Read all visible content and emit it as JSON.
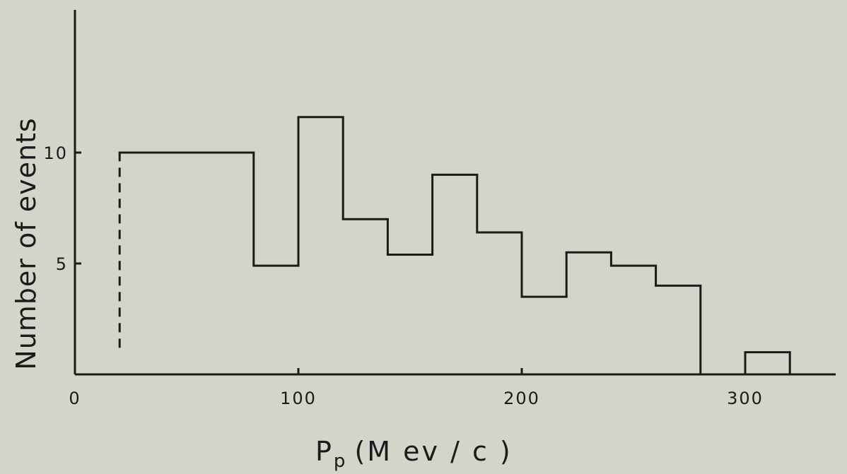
{
  "chart_data": {
    "type": "bar",
    "title": "",
    "xlabel": {
      "symbol": "P",
      "subscript": "p",
      "rest": "(M ev / c )"
    },
    "ylabel": "Number of events",
    "xlim": [
      0,
      340
    ],
    "ylim": [
      0,
      16
    ],
    "x_ticks": [
      0,
      100,
      200,
      300
    ],
    "x_tick_labels": [
      "0",
      "100",
      "200",
      "300"
    ],
    "y_ticks": [
      5,
      10
    ],
    "y_tick_labels": [
      "5",
      "10"
    ],
    "bin_edges": [
      20,
      80,
      100,
      120,
      140,
      160,
      180,
      200,
      220,
      240,
      260,
      280,
      300,
      320
    ],
    "values": [
      10,
      4.9,
      11.6,
      7,
      5.4,
      9,
      6.4,
      3.5,
      5.5,
      4.9,
      4,
      0,
      1
    ],
    "dashed_cut": {
      "x": 20,
      "y_from": 1.2,
      "y_to": 10
    },
    "grid": false,
    "line_color": "#1c1a1a",
    "background_color": "#d4d5ca"
  }
}
